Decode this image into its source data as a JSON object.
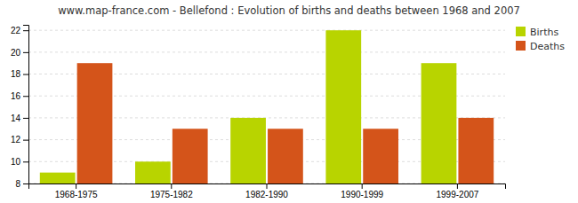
{
  "chart_data": {
    "type": "bar",
    "title": "www.map-france.com - Bellefond : Evolution of births and deaths between 1968 and 2007",
    "categories": [
      "1968-1975",
      "1975-1982",
      "1982-1990",
      "1990-1999",
      "1999-2007"
    ],
    "series": [
      {
        "name": "Births",
        "color": "#b8d400",
        "values": [
          9,
          10,
          14,
          22,
          19
        ]
      },
      {
        "name": "Deaths",
        "color": "#d4541a",
        "values": [
          19,
          13,
          13,
          13,
          14
        ]
      }
    ],
    "ylim": [
      8,
      22.5
    ],
    "yticks": [
      8,
      10,
      12,
      14,
      16,
      18,
      20,
      22
    ],
    "grid": true,
    "legend": "upper right"
  }
}
